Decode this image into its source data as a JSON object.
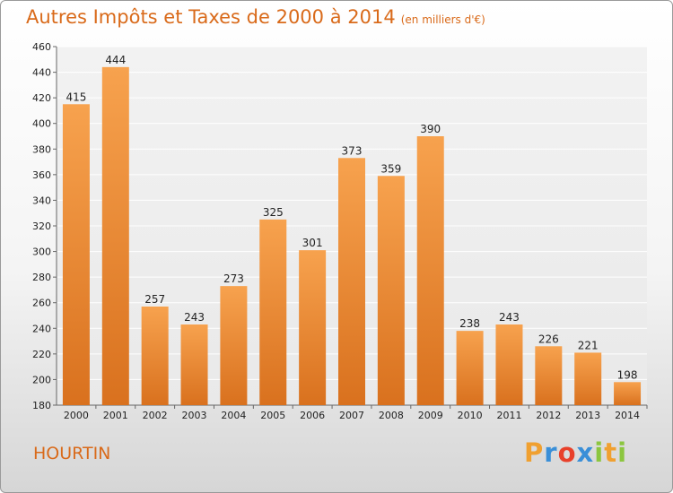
{
  "chart_data": {
    "type": "bar",
    "title": "Autres Impôts et Taxes de 2000 à 2014",
    "subtitle": "(en milliers d'€)",
    "categories": [
      "2000",
      "2001",
      "2002",
      "2003",
      "2004",
      "2005",
      "2006",
      "2007",
      "2008",
      "2009",
      "2010",
      "2011",
      "2012",
      "2013",
      "2014"
    ],
    "values": [
      415,
      444,
      257,
      243,
      273,
      325,
      301,
      373,
      359,
      390,
      238,
      243,
      226,
      221,
      198
    ],
    "ylim": [
      180,
      460
    ],
    "yticks": [
      180,
      200,
      220,
      240,
      260,
      280,
      300,
      320,
      340,
      360,
      380,
      400,
      420,
      440,
      460
    ],
    "grid": true,
    "bar_color": "#f0913a"
  },
  "place": "HOURTIN",
  "logo": {
    "text": "Proxiti",
    "letters": [
      "P",
      "r",
      "o",
      "x",
      "i",
      "t",
      "i"
    ],
    "colors": [
      "#f0a030",
      "#3a8fd8",
      "#e8402a",
      "#3a8fd8",
      "#8cc63f",
      "#f0a030",
      "#8cc63f"
    ]
  }
}
